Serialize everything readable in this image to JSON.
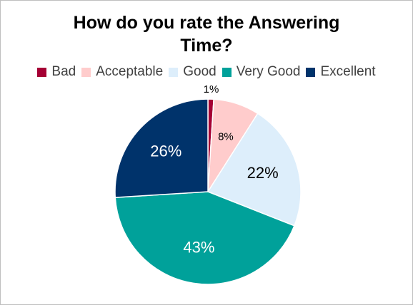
{
  "chart_data": {
    "type": "pie",
    "title_lines": [
      "How do you rate the Answering",
      "Time?"
    ],
    "categories": [
      "Bad",
      "Acceptable",
      "Good",
      "Very Good",
      "Excellent"
    ],
    "values": [
      1,
      8,
      22,
      43,
      26
    ],
    "data_labels": [
      "1%",
      "8%",
      "22%",
      "43%",
      "26%"
    ],
    "colors": [
      "#A50034",
      "#FFCCCC",
      "#DDEEFB",
      "#00A19A",
      "#00336B"
    ],
    "label_colors": [
      "#000000",
      "#000000",
      "#000000",
      "#ffffff",
      "#ffffff"
    ],
    "legend_position": "top"
  }
}
